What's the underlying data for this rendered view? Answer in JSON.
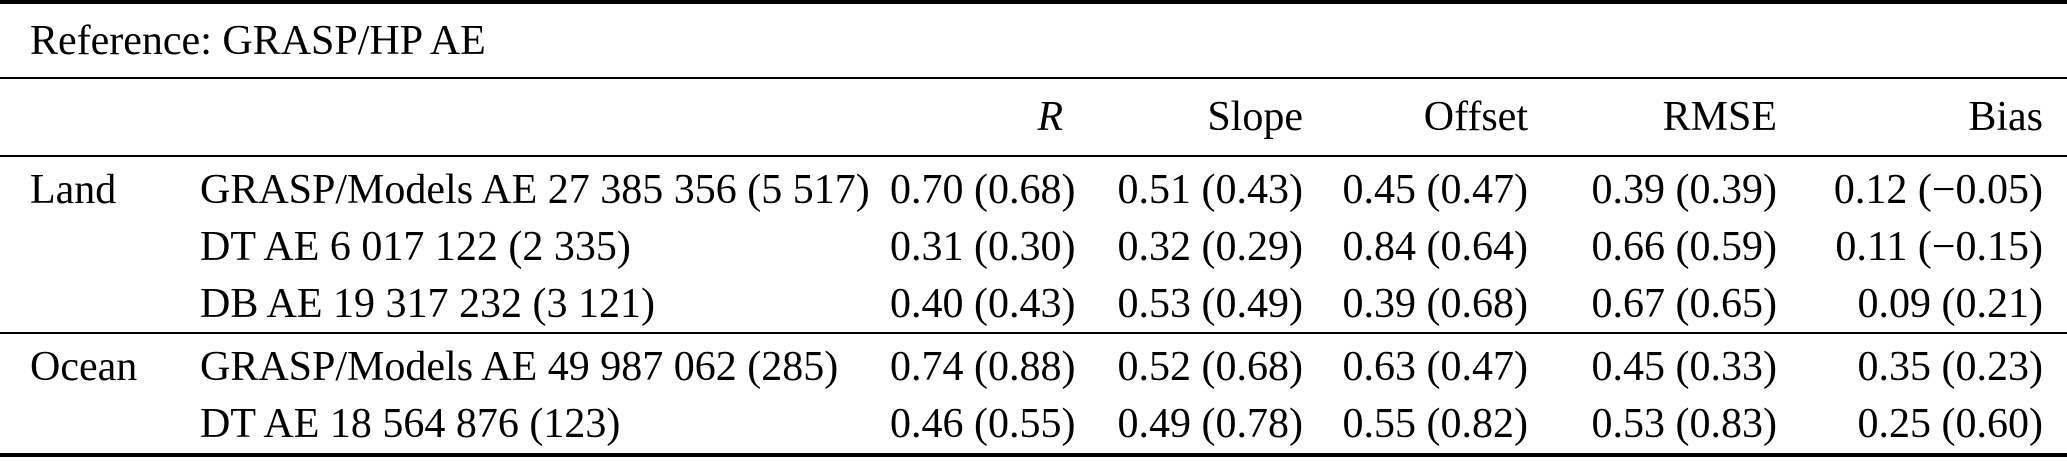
{
  "table": {
    "caption": "Reference: GRASP/HP AE",
    "headers": {
      "r": "R",
      "slope": "Slope",
      "offset": "Offset",
      "rmse": "RMSE",
      "bias": "Bias"
    },
    "groups": [
      {
        "label": "Land",
        "rows": [
          {
            "dataset": "GRASP/Models AE 27 385 356 (5 517)",
            "r": "0.70 (0.68)",
            "slope": "0.51 (0.43)",
            "offset": "0.45 (0.47)",
            "rmse": "0.39 (0.39)",
            "bias": "0.12 (−0.05)"
          },
          {
            "dataset": "DT AE 6 017 122 (2 335)",
            "r": "0.31 (0.30)",
            "slope": "0.32 (0.29)",
            "offset": "0.84 (0.64)",
            "rmse": "0.66 (0.59)",
            "bias": "0.11 (−0.15)"
          },
          {
            "dataset": "DB AE 19 317 232 (3 121)",
            "r": "0.40 (0.43)",
            "slope": "0.53 (0.49)",
            "offset": "0.39 (0.68)",
            "rmse": "0.67 (0.65)",
            "bias": "0.09 (0.21)"
          }
        ]
      },
      {
        "label": "Ocean",
        "rows": [
          {
            "dataset": "GRASP/Models AE 49 987 062 (285)",
            "r": "0.74 (0.88)",
            "slope": "0.52 (0.68)",
            "offset": "0.63 (0.47)",
            "rmse": "0.45 (0.33)",
            "bias": "0.35 (0.23)"
          },
          {
            "dataset": "DT AE 18 564 876 (123)",
            "r": "0.46 (0.55)",
            "slope": "0.49 (0.78)",
            "offset": "0.55 (0.82)",
            "rmse": "0.53 (0.83)",
            "bias": "0.25 (0.60)"
          }
        ]
      }
    ],
    "colors": {
      "text": "#000000",
      "background": "#ffffff",
      "rule": "#000000"
    }
  }
}
